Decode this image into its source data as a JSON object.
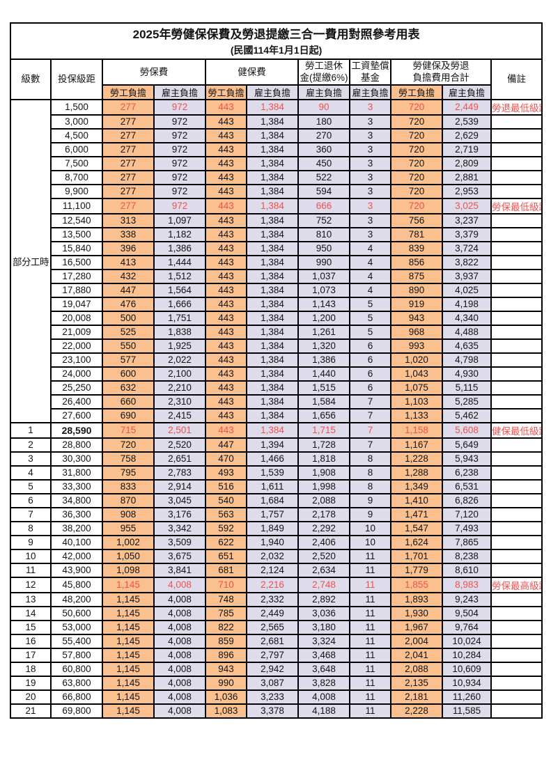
{
  "table": {
    "title": "2025年勞健保保費及勞退提繳三合一費用對照參考用表",
    "subtitle": "(民國114年1月1日起)",
    "colors": {
      "employee_share_bg": "#FAC08F",
      "employer_share_bg": "#DEDBEB",
      "highlight_text": "#F0514F",
      "border": "#000000"
    },
    "header": {
      "level": "級數",
      "bracket": "投保級距",
      "labor_insurance": "勞保費",
      "health_insurance": "健保費",
      "pension_line1": "勞工退休",
      "pension_line2": "金(提繳6%)",
      "wage_fund_line1": "工資墊償",
      "wage_fund_line2": "基金",
      "total_line1": "勞健保及勞退",
      "total_line2": "負擔費用合計",
      "note": "備註",
      "employee_share": "勞工負擔",
      "employer_share": "雇主負擔"
    },
    "part_time_label": "部分工時",
    "part_time_rowspan": 23,
    "rows": [
      {
        "level": "",
        "bracket": "1,500",
        "li_ee": "277",
        "li_er": "972",
        "hi_ee": "443",
        "hi_er": "1,384",
        "pension_er": "90",
        "fund_er": "3",
        "sum_ee": "720",
        "sum_er": "2,449",
        "note": "勞退最低級距",
        "highlight": true
      },
      {
        "level": "",
        "bracket": "3,000",
        "li_ee": "277",
        "li_er": "972",
        "hi_ee": "443",
        "hi_er": "1,384",
        "pension_er": "180",
        "fund_er": "3",
        "sum_ee": "720",
        "sum_er": "2,539",
        "note": "",
        "highlight": false
      },
      {
        "level": "",
        "bracket": "4,500",
        "li_ee": "277",
        "li_er": "972",
        "hi_ee": "443",
        "hi_er": "1,384",
        "pension_er": "270",
        "fund_er": "3",
        "sum_ee": "720",
        "sum_er": "2,629",
        "note": "",
        "highlight": false
      },
      {
        "level": "",
        "bracket": "6,000",
        "li_ee": "277",
        "li_er": "972",
        "hi_ee": "443",
        "hi_er": "1,384",
        "pension_er": "360",
        "fund_er": "3",
        "sum_ee": "720",
        "sum_er": "2,719",
        "note": "",
        "highlight": false
      },
      {
        "level": "",
        "bracket": "7,500",
        "li_ee": "277",
        "li_er": "972",
        "hi_ee": "443",
        "hi_er": "1,384",
        "pension_er": "450",
        "fund_er": "3",
        "sum_ee": "720",
        "sum_er": "2,809",
        "note": "",
        "highlight": false
      },
      {
        "level": "",
        "bracket": "8,700",
        "li_ee": "277",
        "li_er": "972",
        "hi_ee": "443",
        "hi_er": "1,384",
        "pension_er": "522",
        "fund_er": "3",
        "sum_ee": "720",
        "sum_er": "2,881",
        "note": "",
        "highlight": false
      },
      {
        "level": "",
        "bracket": "9,900",
        "li_ee": "277",
        "li_er": "972",
        "hi_ee": "443",
        "hi_er": "1,384",
        "pension_er": "594",
        "fund_er": "3",
        "sum_ee": "720",
        "sum_er": "2,953",
        "note": "",
        "highlight": false
      },
      {
        "level": "",
        "bracket": "11,100",
        "li_ee": "277",
        "li_er": "972",
        "hi_ee": "443",
        "hi_er": "1,384",
        "pension_er": "666",
        "fund_er": "3",
        "sum_ee": "720",
        "sum_er": "3,025",
        "note": "勞保最低級距",
        "highlight": true
      },
      {
        "level": "",
        "bracket": "12,540",
        "li_ee": "313",
        "li_er": "1,097",
        "hi_ee": "443",
        "hi_er": "1,384",
        "pension_er": "752",
        "fund_er": "3",
        "sum_ee": "756",
        "sum_er": "3,237",
        "note": "",
        "highlight": false
      },
      {
        "level": "",
        "bracket": "13,500",
        "li_ee": "338",
        "li_er": "1,182",
        "hi_ee": "443",
        "hi_er": "1,384",
        "pension_er": "810",
        "fund_er": "3",
        "sum_ee": "781",
        "sum_er": "3,379",
        "note": "",
        "highlight": false
      },
      {
        "level": "",
        "bracket": "15,840",
        "li_ee": "396",
        "li_er": "1,386",
        "hi_ee": "443",
        "hi_er": "1,384",
        "pension_er": "950",
        "fund_er": "4",
        "sum_ee": "839",
        "sum_er": "3,724",
        "note": "",
        "highlight": false
      },
      {
        "level": "",
        "bracket": "16,500",
        "li_ee": "413",
        "li_er": "1,444",
        "hi_ee": "443",
        "hi_er": "1,384",
        "pension_er": "990",
        "fund_er": "4",
        "sum_ee": "856",
        "sum_er": "3,822",
        "note": "",
        "highlight": false
      },
      {
        "level": "",
        "bracket": "17,280",
        "li_ee": "432",
        "li_er": "1,512",
        "hi_ee": "443",
        "hi_er": "1,384",
        "pension_er": "1,037",
        "fund_er": "4",
        "sum_ee": "875",
        "sum_er": "3,937",
        "note": "",
        "highlight": false
      },
      {
        "level": "",
        "bracket": "17,880",
        "li_ee": "447",
        "li_er": "1,564",
        "hi_ee": "443",
        "hi_er": "1,384",
        "pension_er": "1,073",
        "fund_er": "4",
        "sum_ee": "890",
        "sum_er": "4,025",
        "note": "",
        "highlight": false
      },
      {
        "level": "",
        "bracket": "19,047",
        "li_ee": "476",
        "li_er": "1,666",
        "hi_ee": "443",
        "hi_er": "1,384",
        "pension_er": "1,143",
        "fund_er": "5",
        "sum_ee": "919",
        "sum_er": "4,198",
        "note": "",
        "highlight": false
      },
      {
        "level": "",
        "bracket": "20,008",
        "li_ee": "500",
        "li_er": "1,751",
        "hi_ee": "443",
        "hi_er": "1,384",
        "pension_er": "1,200",
        "fund_er": "5",
        "sum_ee": "943",
        "sum_er": "4,340",
        "note": "",
        "highlight": false
      },
      {
        "level": "",
        "bracket": "21,009",
        "li_ee": "525",
        "li_er": "1,838",
        "hi_ee": "443",
        "hi_er": "1,384",
        "pension_er": "1,261",
        "fund_er": "5",
        "sum_ee": "968",
        "sum_er": "4,488",
        "note": "",
        "highlight": false
      },
      {
        "level": "",
        "bracket": "22,000",
        "li_ee": "550",
        "li_er": "1,925",
        "hi_ee": "443",
        "hi_er": "1,384",
        "pension_er": "1,320",
        "fund_er": "6",
        "sum_ee": "993",
        "sum_er": "4,635",
        "note": "",
        "highlight": false
      },
      {
        "level": "",
        "bracket": "23,100",
        "li_ee": "577",
        "li_er": "2,022",
        "hi_ee": "443",
        "hi_er": "1,384",
        "pension_er": "1,386",
        "fund_er": "6",
        "sum_ee": "1,020",
        "sum_er": "4,798",
        "note": "",
        "highlight": false
      },
      {
        "level": "",
        "bracket": "24,000",
        "li_ee": "600",
        "li_er": "2,100",
        "hi_ee": "443",
        "hi_er": "1,384",
        "pension_er": "1,440",
        "fund_er": "6",
        "sum_ee": "1,043",
        "sum_er": "4,930",
        "note": "",
        "highlight": false
      },
      {
        "level": "",
        "bracket": "25,250",
        "li_ee": "632",
        "li_er": "2,210",
        "hi_ee": "443",
        "hi_er": "1,384",
        "pension_er": "1,515",
        "fund_er": "6",
        "sum_ee": "1,075",
        "sum_er": "5,115",
        "note": "",
        "highlight": false
      },
      {
        "level": "",
        "bracket": "26,400",
        "li_ee": "660",
        "li_er": "2,310",
        "hi_ee": "443",
        "hi_er": "1,384",
        "pension_er": "1,584",
        "fund_er": "7",
        "sum_ee": "1,103",
        "sum_er": "5,285",
        "note": "",
        "highlight": false
      },
      {
        "level": "",
        "bracket": "27,600",
        "li_ee": "690",
        "li_er": "2,415",
        "hi_ee": "443",
        "hi_er": "1,384",
        "pension_er": "1,656",
        "fund_er": "7",
        "sum_ee": "1,133",
        "sum_er": "5,462",
        "note": "",
        "highlight": false
      },
      {
        "level": "1",
        "bracket": "28,590",
        "li_ee": "715",
        "li_er": "2,501",
        "hi_ee": "443",
        "hi_er": "1,384",
        "pension_er": "1,715",
        "fund_er": "7",
        "sum_ee": "1,158",
        "sum_er": "5,608",
        "note": "健保最低級距",
        "highlight": true,
        "bold": true
      },
      {
        "level": "2",
        "bracket": "28,800",
        "li_ee": "720",
        "li_er": "2,520",
        "hi_ee": "447",
        "hi_er": "1,394",
        "pension_er": "1,728",
        "fund_er": "7",
        "sum_ee": "1,167",
        "sum_er": "5,649",
        "note": "",
        "highlight": false
      },
      {
        "level": "3",
        "bracket": "30,300",
        "li_ee": "758",
        "li_er": "2,651",
        "hi_ee": "470",
        "hi_er": "1,466",
        "pension_er": "1,818",
        "fund_er": "8",
        "sum_ee": "1,228",
        "sum_er": "5,943",
        "note": "",
        "highlight": false
      },
      {
        "level": "4",
        "bracket": "31,800",
        "li_ee": "795",
        "li_er": "2,783",
        "hi_ee": "493",
        "hi_er": "1,539",
        "pension_er": "1,908",
        "fund_er": "8",
        "sum_ee": "1,288",
        "sum_er": "6,238",
        "note": "",
        "highlight": false
      },
      {
        "level": "5",
        "bracket": "33,300",
        "li_ee": "833",
        "li_er": "2,914",
        "hi_ee": "516",
        "hi_er": "1,611",
        "pension_er": "1,998",
        "fund_er": "8",
        "sum_ee": "1,349",
        "sum_er": "6,531",
        "note": "",
        "highlight": false
      },
      {
        "level": "6",
        "bracket": "34,800",
        "li_ee": "870",
        "li_er": "3,045",
        "hi_ee": "540",
        "hi_er": "1,684",
        "pension_er": "2,088",
        "fund_er": "9",
        "sum_ee": "1,410",
        "sum_er": "6,826",
        "note": "",
        "highlight": false
      },
      {
        "level": "7",
        "bracket": "36,300",
        "li_ee": "908",
        "li_er": "3,176",
        "hi_ee": "563",
        "hi_er": "1,757",
        "pension_er": "2,178",
        "fund_er": "9",
        "sum_ee": "1,471",
        "sum_er": "7,120",
        "note": "",
        "highlight": false
      },
      {
        "level": "8",
        "bracket": "38,200",
        "li_ee": "955",
        "li_er": "3,342",
        "hi_ee": "592",
        "hi_er": "1,849",
        "pension_er": "2,292",
        "fund_er": "10",
        "sum_ee": "1,547",
        "sum_er": "7,493",
        "note": "",
        "highlight": false
      },
      {
        "level": "9",
        "bracket": "40,100",
        "li_ee": "1,002",
        "li_er": "3,509",
        "hi_ee": "622",
        "hi_er": "1,940",
        "pension_er": "2,406",
        "fund_er": "10",
        "sum_ee": "1,624",
        "sum_er": "7,865",
        "note": "",
        "highlight": false
      },
      {
        "level": "10",
        "bracket": "42,000",
        "li_ee": "1,050",
        "li_er": "3,675",
        "hi_ee": "651",
        "hi_er": "2,032",
        "pension_er": "2,520",
        "fund_er": "11",
        "sum_ee": "1,701",
        "sum_er": "8,238",
        "note": "",
        "highlight": false
      },
      {
        "level": "11",
        "bracket": "43,900",
        "li_ee": "1,098",
        "li_er": "3,841",
        "hi_ee": "681",
        "hi_er": "2,124",
        "pension_er": "2,634",
        "fund_er": "11",
        "sum_ee": "1,779",
        "sum_er": "8,610",
        "note": "",
        "highlight": false
      },
      {
        "level": "12",
        "bracket": "45,800",
        "li_ee": "1,145",
        "li_er": "4,008",
        "hi_ee": "710",
        "hi_er": "2,216",
        "pension_er": "2,748",
        "fund_er": "11",
        "sum_ee": "1,855",
        "sum_er": "8,983",
        "note": "勞保最高級距",
        "highlight": true
      },
      {
        "level": "13",
        "bracket": "48,200",
        "li_ee": "1,145",
        "li_er": "4,008",
        "hi_ee": "748",
        "hi_er": "2,332",
        "pension_er": "2,892",
        "fund_er": "11",
        "sum_ee": "1,893",
        "sum_er": "9,243",
        "note": "",
        "highlight": false
      },
      {
        "level": "14",
        "bracket": "50,600",
        "li_ee": "1,145",
        "li_er": "4,008",
        "hi_ee": "785",
        "hi_er": "2,449",
        "pension_er": "3,036",
        "fund_er": "11",
        "sum_ee": "1,930",
        "sum_er": "9,504",
        "note": "",
        "highlight": false
      },
      {
        "level": "15",
        "bracket": "53,000",
        "li_ee": "1,145",
        "li_er": "4,008",
        "hi_ee": "822",
        "hi_er": "2,565",
        "pension_er": "3,180",
        "fund_er": "11",
        "sum_ee": "1,967",
        "sum_er": "9,764",
        "note": "",
        "highlight": false
      },
      {
        "level": "16",
        "bracket": "55,400",
        "li_ee": "1,145",
        "li_er": "4,008",
        "hi_ee": "859",
        "hi_er": "2,681",
        "pension_er": "3,324",
        "fund_er": "11",
        "sum_ee": "2,004",
        "sum_er": "10,024",
        "note": "",
        "highlight": false
      },
      {
        "level": "17",
        "bracket": "57,800",
        "li_ee": "1,145",
        "li_er": "4,008",
        "hi_ee": "896",
        "hi_er": "2,797",
        "pension_er": "3,468",
        "fund_er": "11",
        "sum_ee": "2,041",
        "sum_er": "10,284",
        "note": "",
        "highlight": false
      },
      {
        "level": "18",
        "bracket": "60,800",
        "li_ee": "1,145",
        "li_er": "4,008",
        "hi_ee": "943",
        "hi_er": "2,942",
        "pension_er": "3,648",
        "fund_er": "11",
        "sum_ee": "2,088",
        "sum_er": "10,609",
        "note": "",
        "highlight": false
      },
      {
        "level": "19",
        "bracket": "63,800",
        "li_ee": "1,145",
        "li_er": "4,008",
        "hi_ee": "990",
        "hi_er": "3,087",
        "pension_er": "3,828",
        "fund_er": "11",
        "sum_ee": "2,135",
        "sum_er": "10,934",
        "note": "",
        "highlight": false
      },
      {
        "level": "20",
        "bracket": "66,800",
        "li_ee": "1,145",
        "li_er": "4,008",
        "hi_ee": "1,036",
        "hi_er": "3,233",
        "pension_er": "4,008",
        "fund_er": "11",
        "sum_ee": "2,181",
        "sum_er": "11,260",
        "note": "",
        "highlight": false
      },
      {
        "level": "21",
        "bracket": "69,800",
        "li_ee": "1,145",
        "li_er": "4,008",
        "hi_ee": "1,083",
        "hi_er": "3,378",
        "pension_er": "4,188",
        "fund_er": "11",
        "sum_ee": "2,228",
        "sum_er": "11,585",
        "note": "",
        "highlight": false
      }
    ]
  }
}
